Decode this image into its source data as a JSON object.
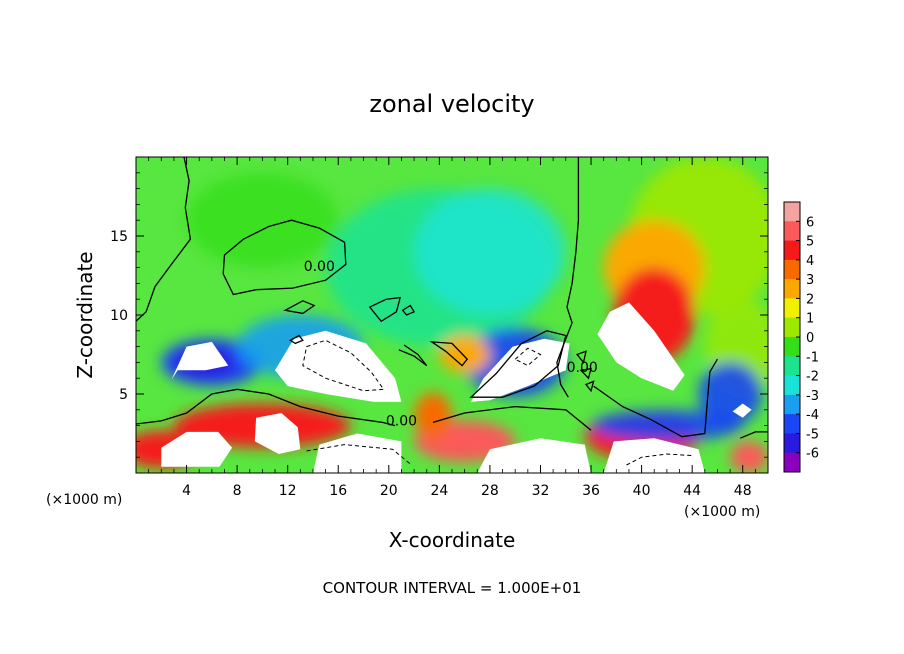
{
  "chart_data": {
    "type": "heatmap",
    "title": "zonal velocity",
    "xlabel": "X-coordinate",
    "ylabel": "Z-coordinate",
    "x_unit": "(×1000 m)",
    "y_unit": "(×1000 m)",
    "xlim": [
      0,
      50
    ],
    "ylim": [
      0,
      20
    ],
    "x_ticks": [
      4,
      8,
      12,
      16,
      20,
      24,
      28,
      32,
      36,
      40,
      44,
      48
    ],
    "y_ticks": [
      5,
      10,
      15
    ],
    "footer": "CONTOUR INTERVAL = 1.000E+01",
    "contour_labels": [
      {
        "text": "0.00",
        "x": 14.5,
        "y": 12.8
      },
      {
        "text": "0.00",
        "x": 21.0,
        "y": 3.0
      },
      {
        "text": "0.00",
        "x": 35.3,
        "y": 6.4
      }
    ],
    "colorbar": {
      "ticks": [
        6,
        5,
        4,
        3,
        2,
        1,
        0,
        -1,
        -2,
        -3,
        -4,
        -5,
        -6
      ],
      "colors": [
        "#f4a3a3",
        "#fa5a5a",
        "#f51a1a",
        "#f76a00",
        "#fba900",
        "#f0f000",
        "#9ee800",
        "#36de1a",
        "#1ce38e",
        "#19e3d8",
        "#1a9ef0",
        "#1a46f5",
        "#2a1ae0",
        "#8a00bf"
      ]
    }
  }
}
